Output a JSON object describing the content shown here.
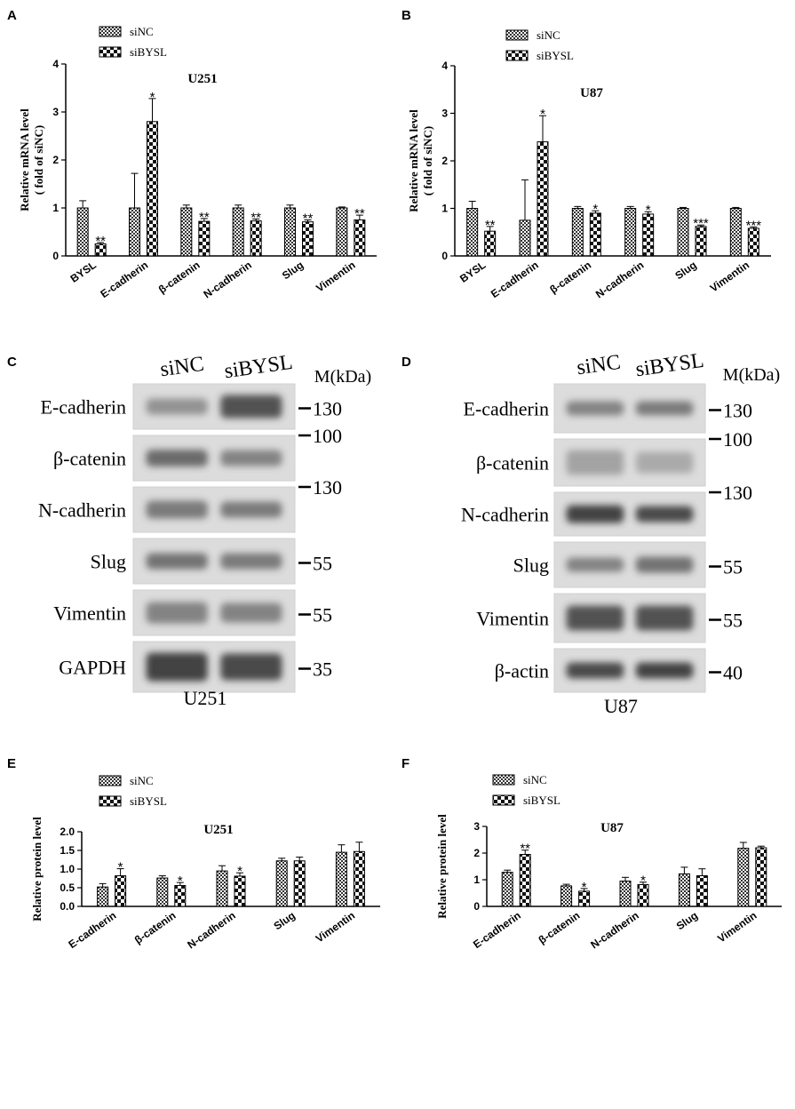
{
  "legend": {
    "control": "siNC",
    "treatment": "siBYSL"
  },
  "colors": {
    "bar_dark": "#333333",
    "bar_light": "#ffffff",
    "blot_bg": "#dcdcdc",
    "band": "#3a3a3a"
  },
  "chart_data": [
    {
      "panel": "A",
      "type": "bar",
      "title": "U251",
      "ylabel": "Relative mRNA level",
      "ylabel2": "( fold of siNC)",
      "ylim": [
        0,
        4
      ],
      "yticks": [
        "0",
        "1",
        "2",
        "3",
        "4"
      ],
      "categories": [
        "BYSL",
        "E-cadherin",
        "β-catenin",
        "N-cadherin",
        "Slug",
        "Vimentin"
      ],
      "series": [
        {
          "name": "siNC",
          "values": [
            1.0,
            1.0,
            1.0,
            1.0,
            1.0,
            1.0
          ],
          "errors": [
            0.15,
            0.72,
            0.06,
            0.06,
            0.06,
            0.02
          ],
          "sig": [
            "",
            "",
            "",
            "",
            "",
            ""
          ]
        },
        {
          "name": "siBYSL",
          "values": [
            0.25,
            2.8,
            0.72,
            0.73,
            0.71,
            0.75
          ],
          "errors": [
            0.03,
            0.48,
            0.06,
            0.04,
            0.04,
            0.1
          ],
          "sig": [
            "**",
            "*",
            "**",
            "**",
            "**",
            "**"
          ]
        }
      ]
    },
    {
      "panel": "B",
      "type": "bar",
      "title": "U87",
      "ylabel": "Relative mRNA level",
      "ylabel2": "( fold of siNC)",
      "ylim": [
        0,
        4
      ],
      "yticks": [
        "0",
        "1",
        "2",
        "3",
        "4"
      ],
      "categories": [
        "BYSL",
        "E-cadherin",
        "β-catenin",
        "N-cadherin",
        "Slug",
        "Vimentin"
      ],
      "series": [
        {
          "name": "siNC",
          "values": [
            1.0,
            0.75,
            1.0,
            1.0,
            1.0,
            1.0
          ],
          "errors": [
            0.15,
            0.85,
            0.04,
            0.04,
            0.02,
            0.02
          ],
          "sig": [
            "",
            "",
            "",
            "",
            "",
            ""
          ]
        },
        {
          "name": "siBYSL",
          "values": [
            0.52,
            2.4,
            0.9,
            0.88,
            0.62,
            0.58
          ],
          "errors": [
            0.1,
            0.55,
            0.05,
            0.05,
            0.03,
            0.03
          ],
          "sig": [
            "**",
            "*",
            "*",
            "*",
            "***",
            "***"
          ]
        }
      ]
    },
    {
      "panel": "E",
      "type": "bar",
      "title": "U251",
      "ylabel": "Relative protein level",
      "ylabel2": "",
      "ylim": [
        0,
        2.0
      ],
      "yticks": [
        "0.0",
        "0.5",
        "1.0",
        "1.5",
        "2.0"
      ],
      "categories": [
        "E-cadherin",
        "β-catenin",
        "N-cadherin",
        "Slug",
        "Vimentin"
      ],
      "series": [
        {
          "name": "siNC",
          "values": [
            0.52,
            0.76,
            0.95,
            1.22,
            1.45
          ],
          "errors": [
            0.09,
            0.06,
            0.14,
            0.07,
            0.2
          ],
          "sig": [
            "",
            "",
            "",
            "",
            ""
          ]
        },
        {
          "name": "siBYSL",
          "values": [
            0.82,
            0.56,
            0.81,
            1.22,
            1.47
          ],
          "errors": [
            0.19,
            0.08,
            0.09,
            0.1,
            0.25
          ],
          "sig": [
            "*",
            "*",
            "*",
            "",
            ""
          ]
        }
      ]
    },
    {
      "panel": "F",
      "type": "bar",
      "title": "U87",
      "ylabel": "Relative protein level",
      "ylabel2": "",
      "ylim": [
        0,
        3
      ],
      "yticks": [
        "0",
        "1",
        "2",
        "3"
      ],
      "categories": [
        "E-cadherin",
        "β-catenin",
        "N-cadherin",
        "Slug",
        "Vimentin"
      ],
      "series": [
        {
          "name": "siNC",
          "values": [
            1.28,
            0.77,
            0.95,
            1.22,
            2.18
          ],
          "errors": [
            0.08,
            0.06,
            0.14,
            0.25,
            0.22
          ],
          "sig": [
            "",
            "",
            "",
            "",
            ""
          ]
        },
        {
          "name": "siBYSL",
          "values": [
            1.95,
            0.57,
            0.82,
            1.15,
            2.2
          ],
          "errors": [
            0.16,
            0.1,
            0.09,
            0.26,
            0.06
          ],
          "sig": [
            "**",
            "*",
            "*",
            "",
            ""
          ]
        }
      ]
    }
  ],
  "blots": [
    {
      "panel": "C",
      "cell_line": "U251",
      "lanes": [
        "siNC",
        "siBYSL"
      ],
      "marker_header": "M(kDa)",
      "rows": [
        {
          "label": "E-cadherin",
          "marker": "130"
        },
        {
          "label": "β-catenin",
          "marker": "100"
        },
        {
          "label": "N-cadherin",
          "marker": "130"
        },
        {
          "label": "Slug",
          "marker": "55"
        },
        {
          "label": "Vimentin",
          "marker": "55"
        },
        {
          "label": "GAPDH",
          "marker": "35"
        }
      ]
    },
    {
      "panel": "D",
      "cell_line": "U87",
      "lanes": [
        "siNC",
        "siBYSL"
      ],
      "marker_header": "M(kDa)",
      "rows": [
        {
          "label": "E-cadherin",
          "marker": "130"
        },
        {
          "label": "β-catenin",
          "marker": "100"
        },
        {
          "label": "N-cadherin",
          "marker": "130"
        },
        {
          "label": "Slug",
          "marker": "55"
        },
        {
          "label": "Vimentin",
          "marker": "55"
        },
        {
          "label": "β-actin",
          "marker": "40"
        }
      ]
    }
  ]
}
